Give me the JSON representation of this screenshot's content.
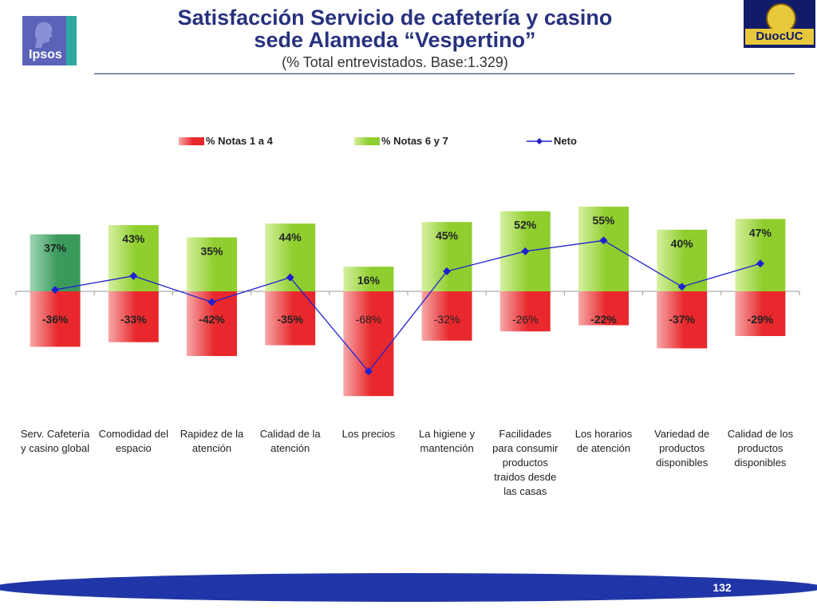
{
  "header": {
    "title_line1": "Satisfacción Servicio de cafetería y casino",
    "title_line2": "sede Alameda “Vespertino”",
    "subtitle": "(% Total entrevistados. Base:1.329)"
  },
  "logos": {
    "left_text": "Ipsos",
    "right_text": "DuocUC"
  },
  "page_number": "132",
  "chart_data": {
    "type": "bar",
    "title": "",
    "categories": [
      [
        "Serv. Cafetería",
        "y casino global"
      ],
      [
        "Comodidad del",
        "espacio"
      ],
      [
        "Rapidez de la",
        "atención"
      ],
      [
        "Calidad de la",
        "atención"
      ],
      [
        "Los precios"
      ],
      [
        "La higiene y",
        "mantención"
      ],
      [
        "Facilidades",
        "para consumir",
        "productos",
        "traidos desde",
        "las casas"
      ],
      [
        "Los horarios",
        "de atención"
      ],
      [
        "Variedad de",
        "productos",
        "disponibles"
      ],
      [
        "Calidad de los",
        "productos",
        "disponibles"
      ]
    ],
    "series": [
      {
        "name": "% Notas 1 a 4",
        "values": [
          -36,
          -33,
          -42,
          -35,
          -68,
          -32,
          -26,
          -22,
          -37,
          -29
        ],
        "labels": [
          "-36%",
          "-33%",
          "-42%",
          "-35%",
          "-68%",
          "-32%",
          "-26%",
          "-22%",
          "-37%",
          "-29%"
        ],
        "bold": [
          true,
          true,
          true,
          true,
          false,
          false,
          false,
          true,
          true,
          true
        ],
        "color": "#e8282c"
      },
      {
        "name": "% Notas 6 y 7",
        "values": [
          37,
          43,
          35,
          44,
          16,
          45,
          52,
          55,
          40,
          47
        ],
        "labels": [
          "37%",
          "43%",
          "35%",
          "44%",
          "16%",
          "45%",
          "52%",
          "55%",
          "40%",
          "47%"
        ],
        "color": "#8fce2e",
        "first_color": "#3a9a5c"
      },
      {
        "name": "Neto",
        "type": "line",
        "values": [
          1,
          10,
          -7,
          9,
          -52,
          13,
          26,
          33,
          3,
          18
        ],
        "color": "#2020d0"
      }
    ],
    "ylim": [
      -75,
      60
    ],
    "grid": false,
    "legend_position": "top"
  }
}
